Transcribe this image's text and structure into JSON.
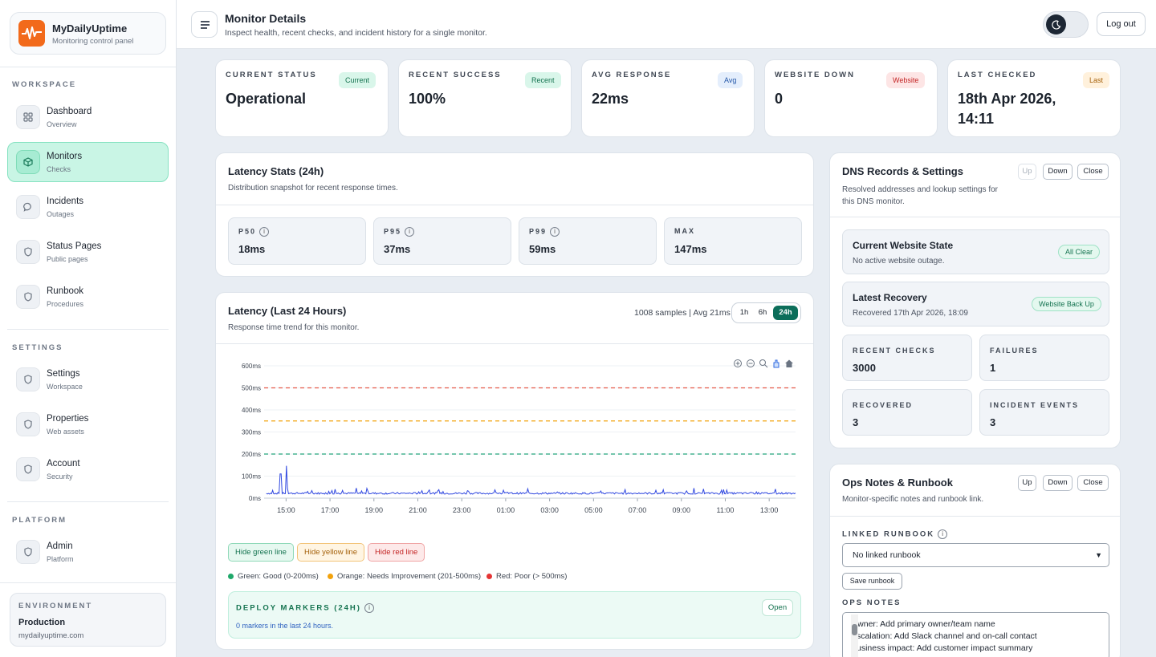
{
  "brand": {
    "name": "MyDailyUptime",
    "subtitle": "Monitoring control panel"
  },
  "sidebar": {
    "workspace_label": "WORKSPACE",
    "settings_label": "SETTINGS",
    "platform_label": "PLATFORM",
    "items": [
      {
        "label": "Dashboard",
        "sub": "Overview",
        "icon": "grid-icon"
      },
      {
        "label": "Monitors",
        "sub": "Checks",
        "icon": "box-icon",
        "active": true
      },
      {
        "label": "Incidents",
        "sub": "Outages",
        "icon": "chat-icon"
      },
      {
        "label": "Status Pages",
        "sub": "Public pages",
        "icon": "shield-icon"
      },
      {
        "label": "Runbook",
        "sub": "Procedures",
        "icon": "shield-icon"
      },
      {
        "label": "Settings",
        "sub": "Workspace",
        "icon": "shield-icon"
      },
      {
        "label": "Properties",
        "sub": "Web assets",
        "icon": "shield-icon"
      },
      {
        "label": "Account",
        "sub": "Security",
        "icon": "shield-icon"
      },
      {
        "label": "Admin",
        "sub": "Platform",
        "icon": "shield-icon"
      }
    ],
    "environment": {
      "label": "ENVIRONMENT",
      "name": "Production",
      "url": "mydailyuptime.com"
    }
  },
  "header": {
    "title": "Monitor Details",
    "subtitle": "Inspect health, recent checks, and incident history for a single monitor.",
    "logout": "Log out"
  },
  "stats": [
    {
      "label": "CURRENT STATUS",
      "value": "Operational",
      "badge": "Current",
      "badge_color": "#157350"
    },
    {
      "label": "RECENT SUCCESS",
      "value": "100%",
      "badge": "Recent",
      "badge_color": "#157350"
    },
    {
      "label": "AVG RESPONSE",
      "value": "22ms",
      "badge": "Avg",
      "badge_color": "#2457a8"
    },
    {
      "label": "WEBSITE DOWN",
      "value": "0",
      "badge": "Website",
      "badge_color": "#c42525"
    },
    {
      "label": "LAST CHECKED",
      "value_line1": "18th Apr 2026,",
      "value_line2": "14:11",
      "badge": "Last",
      "badge_color": "#a5610b"
    }
  ],
  "latency_stats": {
    "title": "Latency Stats (24h)",
    "subtitle": "Distribution snapshot for recent response times.",
    "items": [
      {
        "label": "P50",
        "value": "18ms"
      },
      {
        "label": "P95",
        "value": "37ms"
      },
      {
        "label": "P99",
        "value": "59ms"
      },
      {
        "label": "MAX",
        "value": "147ms"
      }
    ]
  },
  "latency_chart": {
    "title": "Latency (Last 24 Hours)",
    "subtitle": "Response time trend for this monitor.",
    "samples_text": "1008 samples | Avg 21ms",
    "ranges": [
      "1h",
      "6h",
      "24h"
    ],
    "selected_range": "24h",
    "toolbar_icons": [
      "zoom-in-icon",
      "zoom-out-icon",
      "magnify-icon",
      "pan-hand-icon",
      "home-icon"
    ],
    "buttons": {
      "green": "Hide green line",
      "yellow": "Hide yellow line",
      "red": "Hide red line"
    },
    "legend": [
      {
        "text": "Green: Good (0-200ms)",
        "color": "#1fa86a"
      },
      {
        "text": "Orange: Needs Improvement (201-500ms)",
        "color": "#f2a20c"
      },
      {
        "text": "Red: Poor (> 500ms)",
        "color": "#e53434"
      }
    ],
    "deploy": {
      "title": "DEPLOY MARKERS (24H)",
      "subtitle": "0 markers in the last 24 hours.",
      "open": "Open"
    }
  },
  "chart_data": {
    "type": "line",
    "title": "",
    "xlabel": "",
    "ylabel": "",
    "ylim": [
      0,
      600
    ],
    "y_ticks": [
      "0ms",
      "100ms",
      "200ms",
      "300ms",
      "400ms",
      "500ms",
      "600ms"
    ],
    "x_ticks": [
      "15:00",
      "17:00",
      "19:00",
      "21:00",
      "23:00",
      "01:00",
      "03:00",
      "05:00",
      "07:00",
      "09:00",
      "11:00",
      "13:00"
    ],
    "thresholds": [
      {
        "value": 500,
        "color": "#e55a4a"
      },
      {
        "value": 350,
        "color": "#f2a20c"
      },
      {
        "value": 200,
        "color": "#23a57a"
      }
    ],
    "series": [
      {
        "color": "#3048e0",
        "x": [
          "14:00",
          "14:30",
          "14:45",
          "15:00",
          "15:30",
          "16:00",
          "17:00",
          "18:00",
          "19:00",
          "20:00",
          "21:00",
          "22:00",
          "23:00",
          "00:00",
          "01:00",
          "02:00",
          "03:00",
          "04:00",
          "05:00",
          "06:00",
          "07:00",
          "08:00",
          "09:00",
          "10:00",
          "11:00",
          "12:00",
          "13:00",
          "14:00"
        ],
        "values": [
          20,
          25,
          110,
          147,
          30,
          22,
          35,
          20,
          28,
          18,
          25,
          22,
          20,
          24,
          18,
          30,
          22,
          20,
          26,
          19,
          25,
          22,
          20,
          28,
          18,
          24,
          20,
          22
        ]
      }
    ]
  },
  "dns": {
    "title": "DNS Records & Settings",
    "subtitle_line1": "Resolved addresses and lookup settings for",
    "subtitle_line2": "this DNS monitor.",
    "buttons": {
      "up": "Up",
      "down": "Down",
      "close": "Close"
    },
    "state": {
      "title": "Current Website State",
      "sub": "No active website outage.",
      "badge": "All Clear"
    },
    "recovery": {
      "title": "Latest Recovery",
      "sub": "Recovered 17th Apr 2026, 18:09",
      "badge": "Website Back Up"
    },
    "metrics": [
      {
        "label": "RECENT CHECKS",
        "value": "3000"
      },
      {
        "label": "FAILURES",
        "value": "1"
      },
      {
        "label": "RECOVERED",
        "value": "3"
      },
      {
        "label": "INCIDENT EVENTS",
        "value": "3"
      }
    ]
  },
  "ops": {
    "title": "Ops Notes & Runbook",
    "subtitle": "Monitor-specific notes and runbook link.",
    "buttons": {
      "up": "Up",
      "down": "Down",
      "close": "Close"
    },
    "runbook_label": "LINKED RUNBOOK",
    "runbook_value": "No linked runbook",
    "save": "Save runbook",
    "notes_label": "OPS NOTES",
    "notes": [
      "Owner: Add primary owner/team name",
      "Escalation: Add Slack channel and on-call contact",
      "Business impact: Add customer impact summary"
    ]
  }
}
